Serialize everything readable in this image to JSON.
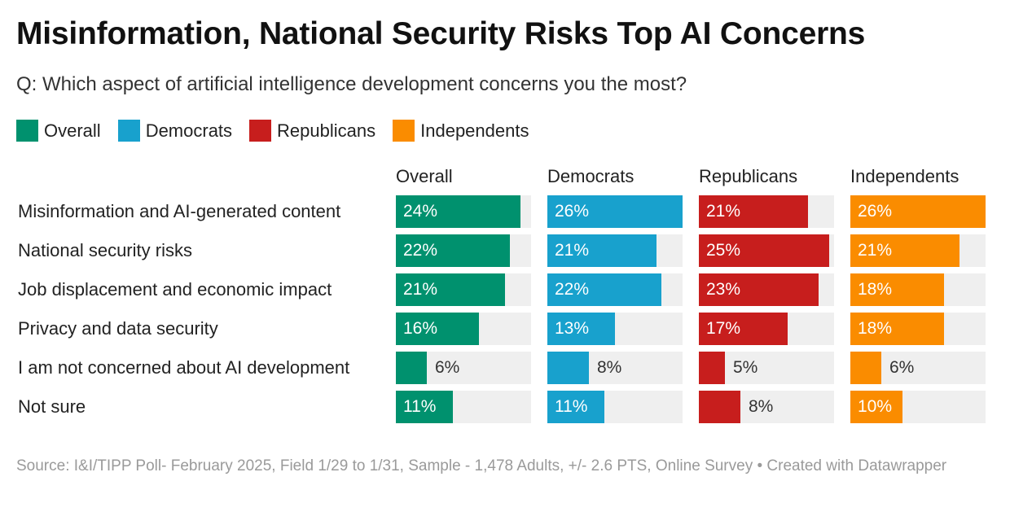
{
  "title": "Misinformation, National Security Risks Top AI Concerns",
  "subtitle": "Q: Which aspect of artificial intelligence development concerns you the most?",
  "footer": "Source: I&I/TIPP Poll- February 2025, Field 1/29 to 1/31, Sample - 1,478 Adults, +/- 2.6 PTS, Online Survey • Created with Datawrapper",
  "chart_data": {
    "type": "bar",
    "orientation": "horizontal",
    "layout": "small-multiples",
    "title": "Misinformation, National Security Risks Top AI Concerns",
    "subtitle": "Q: Which aspect of artificial intelligence development concerns you the most?",
    "unit": "%",
    "xlim": [
      0,
      26
    ],
    "legend_position": "top-left",
    "categories": [
      "Misinformation and AI-generated content",
      "National security risks",
      "Job displacement and economic impact",
      "Privacy and data security",
      "I am not concerned about AI development",
      "Not sure"
    ],
    "series": [
      {
        "name": "Overall",
        "color": "#00916e",
        "values": [
          24,
          22,
          21,
          16,
          6,
          11
        ],
        "labels": [
          "24%",
          "22%",
          "21%",
          "16%",
          "6%",
          "11%"
        ]
      },
      {
        "name": "Democrats",
        "color": "#18a1cd",
        "values": [
          26,
          21,
          22,
          13,
          8,
          11
        ],
        "labels": [
          "26%",
          "21%",
          "22%",
          "13%",
          "8%",
          "11%"
        ]
      },
      {
        "name": "Republicans",
        "color": "#c71e1d",
        "values": [
          21,
          25,
          23,
          17,
          5,
          8
        ],
        "labels": [
          "21%",
          "25%",
          "23%",
          "17%",
          "5%",
          "8%"
        ]
      },
      {
        "name": "Independents",
        "color": "#fa8c00",
        "values": [
          26,
          21,
          18,
          18,
          6,
          10
        ],
        "labels": [
          "26%",
          "21%",
          "18%",
          "18%",
          "6%",
          "10%"
        ]
      }
    ]
  }
}
